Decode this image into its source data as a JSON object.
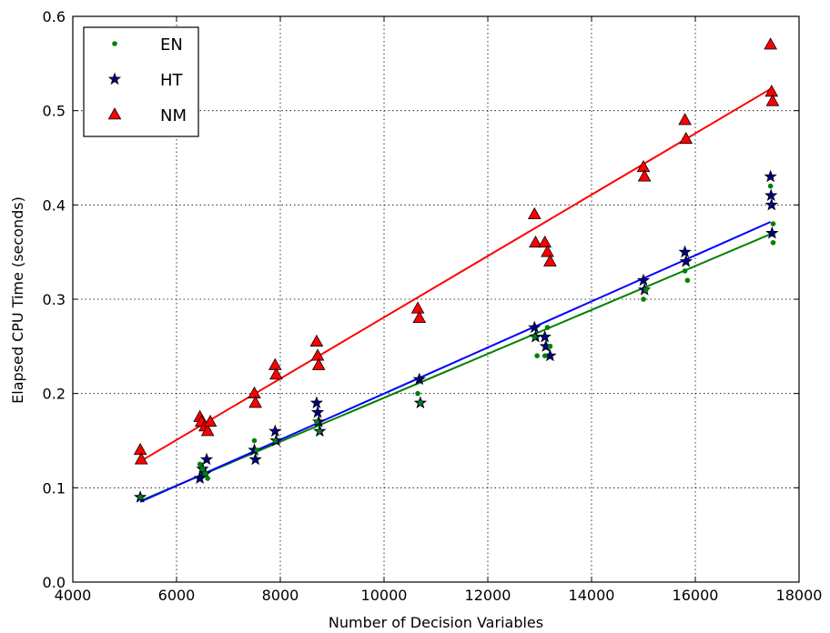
{
  "chart_data": {
    "type": "scatter",
    "xlabel": "Number of Decision Variables",
    "ylabel": "Elapsed CPU Time (seconds)",
    "xlim": [
      4000,
      18000
    ],
    "ylim": [
      0.0,
      0.6
    ],
    "x_ticks": [
      4000,
      6000,
      8000,
      10000,
      12000,
      14000,
      16000,
      18000
    ],
    "y_ticks": [
      0.0,
      0.1,
      0.2,
      0.3,
      0.4,
      0.5,
      0.6
    ],
    "x_tick_labels": [
      "4000",
      "6000",
      "8000",
      "10000",
      "12000",
      "14000",
      "16000",
      "18000"
    ],
    "y_tick_labels": [
      "0.0",
      "0.1",
      "0.2",
      "0.3",
      "0.4",
      "0.5",
      "0.6"
    ],
    "grid": true,
    "legend_position": "top-left",
    "series": [
      {
        "name": "EN",
        "marker": "dot",
        "color": "#008000",
        "points": [
          [
            5300,
            0.09
          ],
          [
            6450,
            0.125
          ],
          [
            6500,
            0.12
          ],
          [
            6550,
            0.115
          ],
          [
            6600,
            0.11
          ],
          [
            7500,
            0.15
          ],
          [
            7550,
            0.14
          ],
          [
            7900,
            0.15
          ],
          [
            8700,
            0.17
          ],
          [
            8750,
            0.16
          ],
          [
            10650,
            0.2
          ],
          [
            10700,
            0.19
          ],
          [
            12900,
            0.26
          ],
          [
            12950,
            0.24
          ],
          [
            13100,
            0.24
          ],
          [
            13150,
            0.27
          ],
          [
            13200,
            0.25
          ],
          [
            15000,
            0.3
          ],
          [
            15050,
            0.31
          ],
          [
            15800,
            0.33
          ],
          [
            15850,
            0.32
          ],
          [
            17450,
            0.42
          ],
          [
            17500,
            0.38
          ],
          [
            17500,
            0.36
          ]
        ],
        "fit": [
          [
            5300,
            0.086
          ],
          [
            17450,
            0.369
          ]
        ]
      },
      {
        "name": "HT",
        "marker": "star",
        "color": "#000080",
        "points": [
          [
            5300,
            0.09
          ],
          [
            6450,
            0.11
          ],
          [
            6500,
            0.12
          ],
          [
            6550,
            0.115
          ],
          [
            6580,
            0.13
          ],
          [
            7500,
            0.14
          ],
          [
            7520,
            0.13
          ],
          [
            7900,
            0.16
          ],
          [
            7920,
            0.15
          ],
          [
            8700,
            0.19
          ],
          [
            8720,
            0.18
          ],
          [
            8740,
            0.17
          ],
          [
            8760,
            0.16
          ],
          [
            10680,
            0.215
          ],
          [
            10700,
            0.19
          ],
          [
            12900,
            0.27
          ],
          [
            12920,
            0.26
          ],
          [
            13100,
            0.26
          ],
          [
            13120,
            0.25
          ],
          [
            13200,
            0.24
          ],
          [
            15000,
            0.32
          ],
          [
            15020,
            0.31
          ],
          [
            15800,
            0.35
          ],
          [
            15820,
            0.34
          ],
          [
            17450,
            0.43
          ],
          [
            17460,
            0.41
          ],
          [
            17470,
            0.4
          ],
          [
            17480,
            0.37
          ]
        ],
        "fit": [
          [
            5300,
            0.085
          ],
          [
            17450,
            0.382
          ]
        ]
      },
      {
        "name": "NM",
        "marker": "triangle",
        "color": "#ff0000",
        "points": [
          [
            5300,
            0.14
          ],
          [
            5320,
            0.13
          ],
          [
            6450,
            0.175
          ],
          [
            6480,
            0.17
          ],
          [
            6550,
            0.165
          ],
          [
            6600,
            0.16
          ],
          [
            6650,
            0.17
          ],
          [
            7500,
            0.2
          ],
          [
            7520,
            0.19
          ],
          [
            7900,
            0.23
          ],
          [
            7920,
            0.22
          ],
          [
            8700,
            0.255
          ],
          [
            8720,
            0.24
          ],
          [
            8740,
            0.23
          ],
          [
            10650,
            0.29
          ],
          [
            10680,
            0.28
          ],
          [
            12900,
            0.39
          ],
          [
            12920,
            0.36
          ],
          [
            13100,
            0.36
          ],
          [
            13150,
            0.35
          ],
          [
            13200,
            0.34
          ],
          [
            15000,
            0.44
          ],
          [
            15020,
            0.43
          ],
          [
            15800,
            0.49
          ],
          [
            15820,
            0.47
          ],
          [
            17450,
            0.57
          ],
          [
            17470,
            0.52
          ],
          [
            17490,
            0.51
          ]
        ],
        "fit": [
          [
            5300,
            0.128
          ],
          [
            17450,
            0.523
          ]
        ]
      }
    ]
  }
}
